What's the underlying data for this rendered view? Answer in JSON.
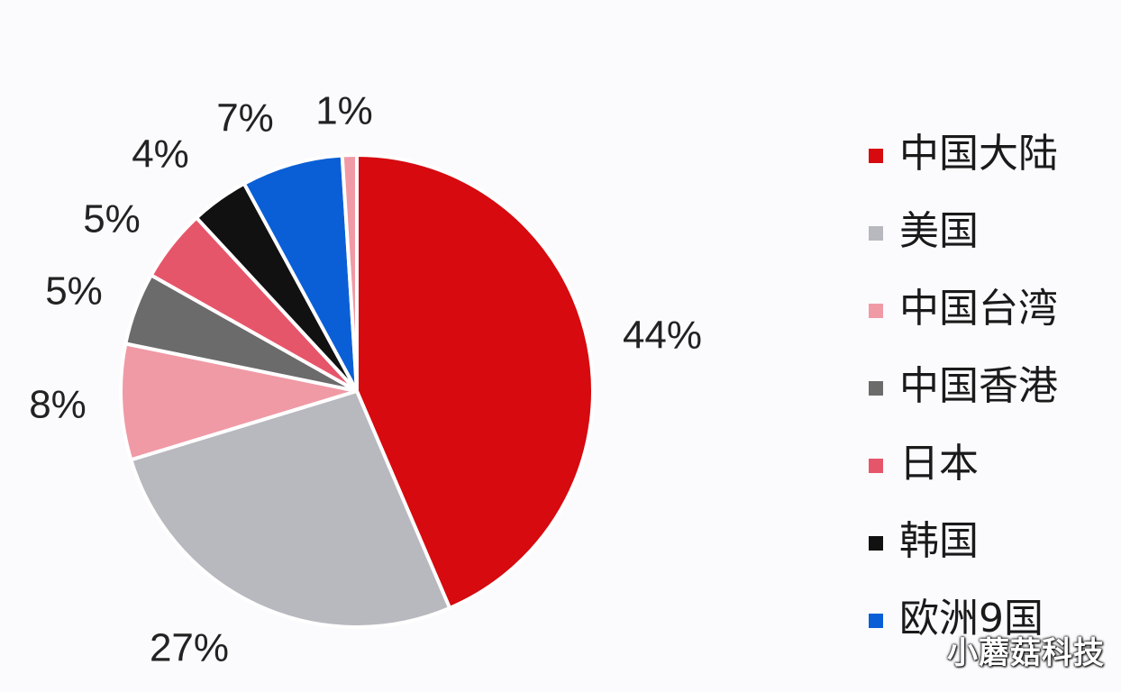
{
  "chart_data": {
    "type": "pie",
    "categories": [
      "中国大陆",
      "美国",
      "中国台湾",
      "中国香港",
      "日本",
      "韩国",
      "欧洲9国",
      ""
    ],
    "values": [
      44,
      27,
      8,
      5,
      5,
      4,
      7,
      1
    ],
    "labels": [
      "44%",
      "27%",
      "8%",
      "5%",
      "5%",
      "4%",
      "7%",
      "1%"
    ],
    "colors": [
      "#d60a0f",
      "#b8b8bf",
      "#f09aa6",
      "#6b6b6b",
      "#e6566a",
      "#111111",
      "#0a5fd6",
      "#f09aa6"
    ],
    "legend_position": "right",
    "legend": [
      {
        "label": "中国大陆",
        "color": "#d60a0f"
      },
      {
        "label": "美国",
        "color": "#b8b8bf"
      },
      {
        "label": "中国台湾",
        "color": "#f09aa6"
      },
      {
        "label": "中国香港",
        "color": "#6b6b6b"
      },
      {
        "label": "日本",
        "color": "#e6566a"
      },
      {
        "label": "韩国",
        "color": "#111111"
      },
      {
        "label": "欧洲9国",
        "color": "#0a5fd6"
      }
    ]
  },
  "watermark": "小蘑菇科技"
}
